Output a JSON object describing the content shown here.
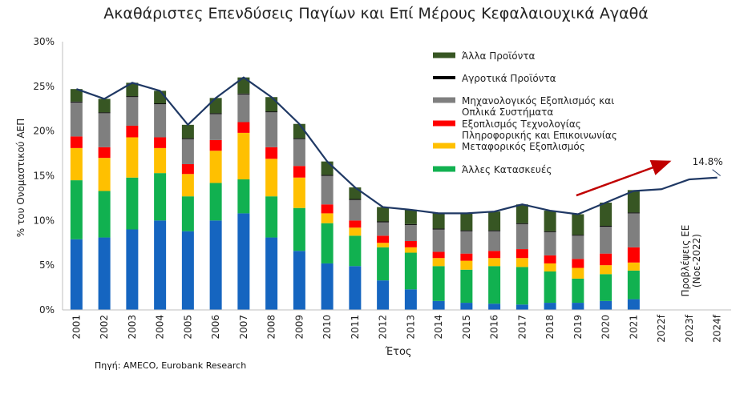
{
  "chart_data": {
    "type": "bar",
    "title": "Ακαθάριστες Επενδύσεις Παγίων και Επί Μέρους Κεφαλαιουχικά Αγαθά",
    "xlabel": "Έτος",
    "ylabel": "% του Ονομαστικού ΑΕΠ",
    "ylim": [
      0,
      30
    ],
    "yticks": [
      "0%",
      "5%",
      "10%",
      "15%",
      "20%",
      "25%",
      "30%"
    ],
    "categories": [
      "2001",
      "2002",
      "2003",
      "2004",
      "2005",
      "2006",
      "2007",
      "2008",
      "2009",
      "2010",
      "2011",
      "2012",
      "2013",
      "2014",
      "2015",
      "2016",
      "2017",
      "2018",
      "2019",
      "2020",
      "2021",
      "2022f",
      "2023f",
      "2024f"
    ],
    "stacked_series": [
      {
        "name": "",
        "color": "#1565c0",
        "values": [
          7.9,
          8.1,
          9.0,
          10.0,
          8.8,
          10.0,
          10.8,
          8.1,
          6.6,
          5.2,
          4.9,
          3.3,
          2.3,
          1.0,
          0.8,
          0.7,
          0.6,
          0.8,
          0.8,
          1.0,
          1.2,
          null,
          null,
          null
        ]
      },
      {
        "name": "Άλλες Κατασκευές",
        "color": "#11b150",
        "values": [
          6.6,
          5.2,
          5.8,
          5.3,
          3.9,
          4.2,
          3.8,
          4.6,
          4.8,
          4.5,
          3.4,
          3.7,
          4.1,
          3.9,
          3.7,
          4.2,
          4.2,
          3.5,
          2.7,
          3.0,
          3.2,
          null,
          null,
          null
        ]
      },
      {
        "name": "Μεταφορικός Εξοπλισμός",
        "color": "#ffc000",
        "values": [
          3.6,
          3.7,
          4.5,
          2.8,
          2.5,
          3.6,
          5.2,
          4.2,
          3.4,
          1.1,
          0.9,
          0.5,
          0.6,
          0.9,
          1.0,
          0.9,
          1.0,
          0.9,
          1.2,
          1.0,
          0.9,
          null,
          null,
          null
        ]
      },
      {
        "name": "Εξοπλισμός Τεχνολογίας Πληροφορικής και Επικοινωνίας",
        "color": "#ff0000",
        "values": [
          1.3,
          1.2,
          1.3,
          1.2,
          1.1,
          1.2,
          1.2,
          1.3,
          1.3,
          1.0,
          0.8,
          0.8,
          0.7,
          0.7,
          0.8,
          0.8,
          1.0,
          0.9,
          1.0,
          1.3,
          1.7,
          null,
          null,
          null
        ]
      },
      {
        "name": "Μηχανολογικός Εξοπλισμός και Οπλικά Συστήματα",
        "color": "#7f7f7f",
        "values": [
          3.8,
          3.8,
          3.2,
          3.7,
          2.8,
          2.9,
          3.1,
          3.9,
          3.0,
          3.2,
          2.3,
          1.5,
          1.8,
          2.5,
          2.5,
          2.2,
          2.8,
          2.6,
          2.6,
          3.0,
          3.8,
          null,
          null,
          null
        ]
      },
      {
        "name": "Αγροτικά Προϊόντα",
        "color": "#000000",
        "values": [
          0.1,
          0.1,
          0.1,
          0.1,
          0.1,
          0.1,
          0.1,
          0.1,
          0.1,
          0.1,
          0.1,
          0.1,
          0.1,
          0.1,
          0.1,
          0.1,
          0.1,
          0.1,
          0.1,
          0.1,
          0.1,
          null,
          null,
          null
        ]
      },
      {
        "name": "Άλλα Προϊόντα",
        "color": "#375623",
        "values": [
          1.4,
          1.5,
          1.5,
          1.4,
          1.5,
          1.7,
          1.8,
          1.6,
          1.6,
          1.5,
          1.3,
          1.6,
          1.6,
          1.7,
          1.9,
          2.1,
          2.1,
          2.3,
          2.3,
          2.6,
          2.5,
          null,
          null,
          null
        ]
      }
    ],
    "total_line": {
      "color": "#1f3864",
      "values": [
        24.7,
        23.6,
        25.4,
        24.5,
        20.7,
        23.7,
        26.0,
        23.8,
        20.8,
        16.6,
        13.7,
        11.5,
        11.2,
        10.8,
        10.8,
        11.0,
        11.8,
        11.1,
        10.7,
        12.0,
        13.3,
        13.5,
        14.6,
        14.8
      ]
    },
    "annotations": {
      "end_label": "14.8%",
      "forecast_label_line1": "Προβλέψεις ΕΕ",
      "forecast_label_line2": "(Νοε-2022)",
      "arrow_color": "#c00000"
    },
    "legend_placement": "top-right"
  },
  "source": "Πηγή: AMECO, Eurobank Research"
}
